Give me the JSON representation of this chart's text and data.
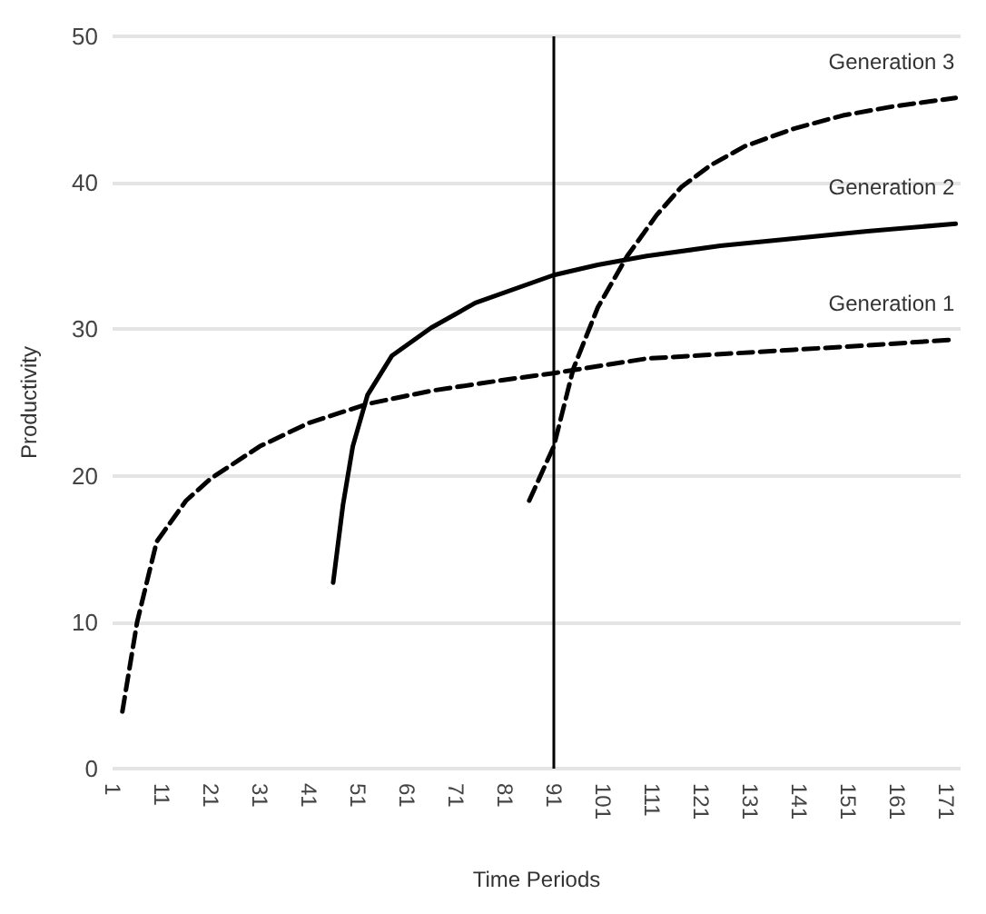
{
  "chart_data": {
    "type": "line",
    "xlabel": "Time Periods",
    "ylabel": "Productivity",
    "xlim": [
      1,
      174
    ],
    "xticks": [
      1,
      11,
      21,
      31,
      41,
      51,
      61,
      71,
      81,
      91,
      101,
      111,
      121,
      131,
      141,
      151,
      161,
      171
    ],
    "ylim": [
      0,
      50
    ],
    "yticks": [
      0,
      10,
      20,
      30,
      40,
      50
    ],
    "grid": "y",
    "marker": "none",
    "legend": false,
    "ref_lines": [
      {
        "axis": "x",
        "value": 91,
        "color": "#000000"
      }
    ],
    "series": [
      {
        "name": "Generation 1",
        "color": "#000000",
        "line_style": "dashed",
        "x": [
          3,
          6,
          10,
          16,
          21,
          31,
          41,
          53,
          66,
          80,
          91,
          110,
          125,
          140,
          155,
          173
        ],
        "values": [
          3.9,
          10,
          15.5,
          18.3,
          19.8,
          22,
          23.6,
          24.9,
          25.8,
          26.5,
          27,
          28,
          28.3,
          28.6,
          28.9,
          29.3
        ]
      },
      {
        "name": "Generation 2",
        "color": "#000000",
        "line_style": "solid",
        "x": [
          46,
          48,
          50,
          53,
          58,
          66,
          75,
          91,
          100,
          110,
          125,
          140,
          155,
          173
        ],
        "values": [
          12.7,
          18,
          22,
          25.5,
          28.2,
          30.1,
          31.8,
          33.7,
          34.4,
          35,
          35.7,
          36.2,
          36.7,
          37.2
        ]
      },
      {
        "name": "Generation 3",
        "color": "#000000",
        "line_style": "dashed",
        "x": [
          86,
          91,
          95,
          100,
          106,
          112,
          117,
          123,
          130,
          140,
          150,
          160,
          173
        ],
        "values": [
          18.3,
          22,
          27.3,
          31.5,
          35,
          37.8,
          39.7,
          41.2,
          42.5,
          43.7,
          44.6,
          45.2,
          45.8
        ]
      }
    ]
  }
}
